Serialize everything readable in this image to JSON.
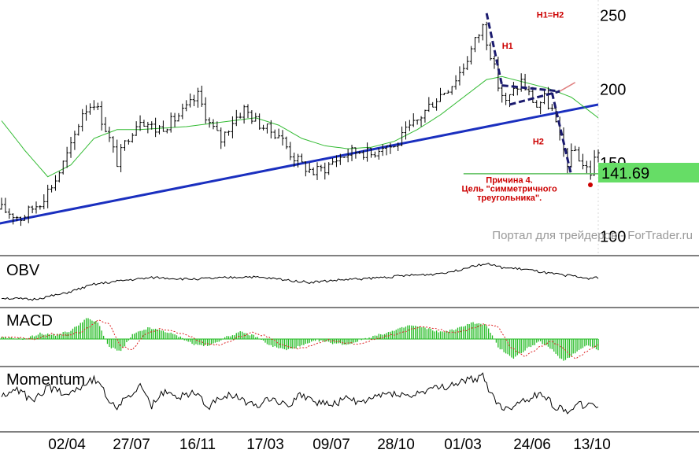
{
  "chart_data": [
    {
      "type": "line",
      "panel": "price",
      "price_axis": {
        "ticks": [
          250,
          200,
          150,
          100
        ],
        "range": [
          88,
          260
        ]
      },
      "series": [
        {
          "role": "price",
          "color": "#000000",
          "anchors": [
            [
              0,
              118
            ],
            [
              5,
              112
            ],
            [
              10,
              123
            ],
            [
              14,
              138
            ],
            [
              18,
              160
            ],
            [
              21,
              184
            ],
            [
              24,
              191
            ],
            [
              27,
              173
            ],
            [
              30,
              150
            ],
            [
              33,
              168
            ],
            [
              36,
              180
            ],
            [
              40,
              172
            ],
            [
              44,
              177
            ],
            [
              48,
              186
            ],
            [
              51,
              195
            ],
            [
              54,
              176
            ],
            [
              57,
              165
            ],
            [
              60,
              178
            ],
            [
              63,
              186
            ],
            [
              66,
              178
            ],
            [
              69,
              172
            ],
            [
              72,
              169
            ],
            [
              75,
              156
            ],
            [
              78,
              148
            ],
            [
              81,
              143
            ],
            [
              84,
              146
            ],
            [
              87,
              152
            ],
            [
              90,
              156
            ],
            [
              93,
              158
            ],
            [
              96,
              155
            ],
            [
              99,
              162
            ],
            [
              102,
              160
            ],
            [
              105,
              170
            ],
            [
              108,
              178
            ],
            [
              111,
              188
            ],
            [
              114,
              196
            ],
            [
              117,
              203
            ],
            [
              120,
              215
            ],
            [
              123,
              232
            ],
            [
              125,
              242
            ],
            [
              127,
              224
            ],
            [
              129,
              202
            ],
            [
              131,
              190
            ],
            [
              133,
              198
            ],
            [
              135,
              205
            ],
            [
              137,
              196
            ],
            [
              139,
              188
            ],
            [
              141,
              193
            ],
            [
              143,
              185
            ],
            [
              145,
              165
            ],
            [
              147,
              150
            ],
            [
              149,
              158
            ],
            [
              151,
              148
            ],
            [
              153,
              143
            ],
            [
              154,
              152
            ],
            [
              155,
              158
            ]
          ]
        },
        {
          "role": "moving-average",
          "color": "#33bb33",
          "anchors": [
            [
              0,
              178
            ],
            [
              6,
              158
            ],
            [
              12,
              140
            ],
            [
              18,
              148
            ],
            [
              24,
              166
            ],
            [
              30,
              172
            ],
            [
              36,
              172
            ],
            [
              42,
              173
            ],
            [
              48,
              174
            ],
            [
              54,
              176
            ],
            [
              60,
              178
            ],
            [
              66,
              180
            ],
            [
              72,
              175
            ],
            [
              78,
              166
            ],
            [
              84,
              161
            ],
            [
              90,
              159
            ],
            [
              96,
              160
            ],
            [
              102,
              164
            ],
            [
              108,
              172
            ],
            [
              114,
              182
            ],
            [
              120,
              194
            ],
            [
              126,
              206
            ],
            [
              130,
              208
            ],
            [
              136,
              204
            ],
            [
              142,
              200
            ],
            [
              148,
              194
            ],
            [
              152,
              186
            ],
            [
              155,
              180
            ]
          ]
        }
      ],
      "trendlines": [
        {
          "role": "support-line",
          "color": "#1a2fbf",
          "points": [
            [
              -1,
              108
            ],
            [
              155,
              189
            ]
          ]
        },
        {
          "role": "pattern-upper",
          "color": "#1a1a6e",
          "style": "dashed",
          "points": [
            [
              126,
              251
            ],
            [
              130,
              202
            ]
          ]
        },
        {
          "role": "pattern-triangle-top",
          "color": "#1a1a6e",
          "style": "dashed",
          "points": [
            [
              130,
              202
            ],
            [
              145,
              198
            ]
          ]
        },
        {
          "role": "pattern-triangle-bottom",
          "color": "#1a1a6e",
          "style": "dashed",
          "points": [
            [
              132,
              189
            ],
            [
              145,
              198
            ]
          ]
        },
        {
          "role": "pattern-drop",
          "color": "#1a1a6e",
          "style": "dashed",
          "points": [
            [
              143,
              197
            ],
            [
              148,
              141
            ]
          ]
        },
        {
          "role": "target-level",
          "color": "#5cbf5c",
          "points": [
            [
              120,
              142
            ],
            [
              155,
              142
            ]
          ]
        },
        {
          "role": "triangle-extension",
          "color": "#e08080",
          "points": [
            [
              145,
              198
            ],
            [
              149,
              204
            ]
          ]
        }
      ],
      "annotations": [
        {
          "text": "H1=H2",
          "anchor": [
            139,
            250
          ],
          "color": "#cc0000"
        },
        {
          "text": "H1",
          "anchor": [
            130,
            229
          ],
          "color": "#cc0000"
        },
        {
          "text": "H2",
          "anchor": [
            138,
            164
          ],
          "color": "#cc0000"
        },
        {
          "text": "Причина 4.",
          "anchor": [
            127,
            138
          ],
          "color": "#cc0000"
        },
        {
          "text": "Цель \"симметричного",
          "anchor": [
            127,
            132
          ],
          "color": "#cc0000"
        },
        {
          "text": "треугольника\".",
          "anchor": [
            127,
            126
          ],
          "color": "#cc0000"
        }
      ],
      "price_label": {
        "value": "141.69",
        "color": "#66dd66"
      },
      "watermark": "Портал для трейдеров - ForTrader.ru"
    },
    {
      "type": "line",
      "panel": "obv",
      "title": "OBV",
      "range": [
        0,
        100
      ],
      "series": [
        {
          "color": "#000000",
          "anchors": [
            [
              0,
              12
            ],
            [
              8,
              8
            ],
            [
              16,
              22
            ],
            [
              24,
              45
            ],
            [
              32,
              55
            ],
            [
              40,
              62
            ],
            [
              48,
              58
            ],
            [
              56,
              60
            ],
            [
              64,
              64
            ],
            [
              72,
              58
            ],
            [
              80,
              50
            ],
            [
              88,
              56
            ],
            [
              96,
              60
            ],
            [
              104,
              66
            ],
            [
              112,
              70
            ],
            [
              118,
              78
            ],
            [
              122,
              90
            ],
            [
              126,
              96
            ],
            [
              130,
              86
            ],
            [
              136,
              82
            ],
            [
              142,
              72
            ],
            [
              148,
              66
            ],
            [
              152,
              60
            ],
            [
              155,
              62
            ]
          ]
        }
      ]
    },
    {
      "type": "bar",
      "panel": "macd",
      "title": "MACD",
      "range": [
        -1.6,
        1.6
      ],
      "histogram_color": "#22bb22",
      "signal_color": "#dd2222",
      "series": [
        {
          "role": "histogram",
          "anchors": [
            [
              0,
              0.1
            ],
            [
              6,
              0.0
            ],
            [
              10,
              0.4
            ],
            [
              14,
              0.3
            ],
            [
              18,
              0.6
            ],
            [
              22,
              1.5
            ],
            [
              25,
              1.2
            ],
            [
              28,
              -0.6
            ],
            [
              31,
              -0.9
            ],
            [
              34,
              0.3
            ],
            [
              38,
              0.8
            ],
            [
              42,
              0.6
            ],
            [
              46,
              0.2
            ],
            [
              50,
              -0.4
            ],
            [
              54,
              -0.5
            ],
            [
              58,
              0.1
            ],
            [
              62,
              0.5
            ],
            [
              66,
              0.2
            ],
            [
              70,
              -0.5
            ],
            [
              74,
              -0.8
            ],
            [
              78,
              -0.5
            ],
            [
              82,
              -0.1
            ],
            [
              86,
              -0.3
            ],
            [
              90,
              -0.4
            ],
            [
              94,
              0.0
            ],
            [
              98,
              0.3
            ],
            [
              102,
              0.6
            ],
            [
              106,
              1.0
            ],
            [
              110,
              0.8
            ],
            [
              114,
              0.5
            ],
            [
              118,
              0.7
            ],
            [
              122,
              1.2
            ],
            [
              126,
              1.0
            ],
            [
              129,
              -0.6
            ],
            [
              133,
              -1.4
            ],
            [
              137,
              -0.6
            ],
            [
              140,
              -0.2
            ],
            [
              143,
              -0.8
            ],
            [
              146,
              -1.6
            ],
            [
              149,
              -1.0
            ],
            [
              152,
              -0.4
            ],
            [
              155,
              -0.8
            ]
          ]
        }
      ]
    },
    {
      "type": "line",
      "panel": "momentum",
      "title": "Momentum",
      "range": [
        0,
        100
      ],
      "series": [
        {
          "color": "#000000",
          "anchors": [
            [
              0,
              55
            ],
            [
              4,
              68
            ],
            [
              8,
              50
            ],
            [
              12,
              72
            ],
            [
              16,
              62
            ],
            [
              20,
              70
            ],
            [
              24,
              88
            ],
            [
              27,
              60
            ],
            [
              30,
              35
            ],
            [
              33,
              58
            ],
            [
              36,
              72
            ],
            [
              39,
              40
            ],
            [
              42,
              62
            ],
            [
              46,
              55
            ],
            [
              50,
              64
            ],
            [
              54,
              38
            ],
            [
              58,
              60
            ],
            [
              62,
              52
            ],
            [
              66,
              40
            ],
            [
              70,
              55
            ],
            [
              74,
              40
            ],
            [
              78,
              60
            ],
            [
              82,
              45
            ],
            [
              86,
              42
            ],
            [
              90,
              52
            ],
            [
              94,
              45
            ],
            [
              98,
              58
            ],
            [
              102,
              62
            ],
            [
              106,
              55
            ],
            [
              110,
              66
            ],
            [
              114,
              70
            ],
            [
              118,
              78
            ],
            [
              122,
              85
            ],
            [
              125,
              90
            ],
            [
              128,
              50
            ],
            [
              131,
              32
            ],
            [
              134,
              45
            ],
            [
              138,
              55
            ],
            [
              141,
              60
            ],
            [
              144,
              35
            ],
            [
              147,
              32
            ],
            [
              150,
              42
            ],
            [
              153,
              38
            ],
            [
              155,
              40
            ]
          ]
        }
      ]
    }
  ],
  "date_ticks": [
    "02/04",
    "27/07",
    "16/11",
    "17/03",
    "09/07",
    "28/10",
    "01/03",
    "24/06",
    "13/10"
  ]
}
